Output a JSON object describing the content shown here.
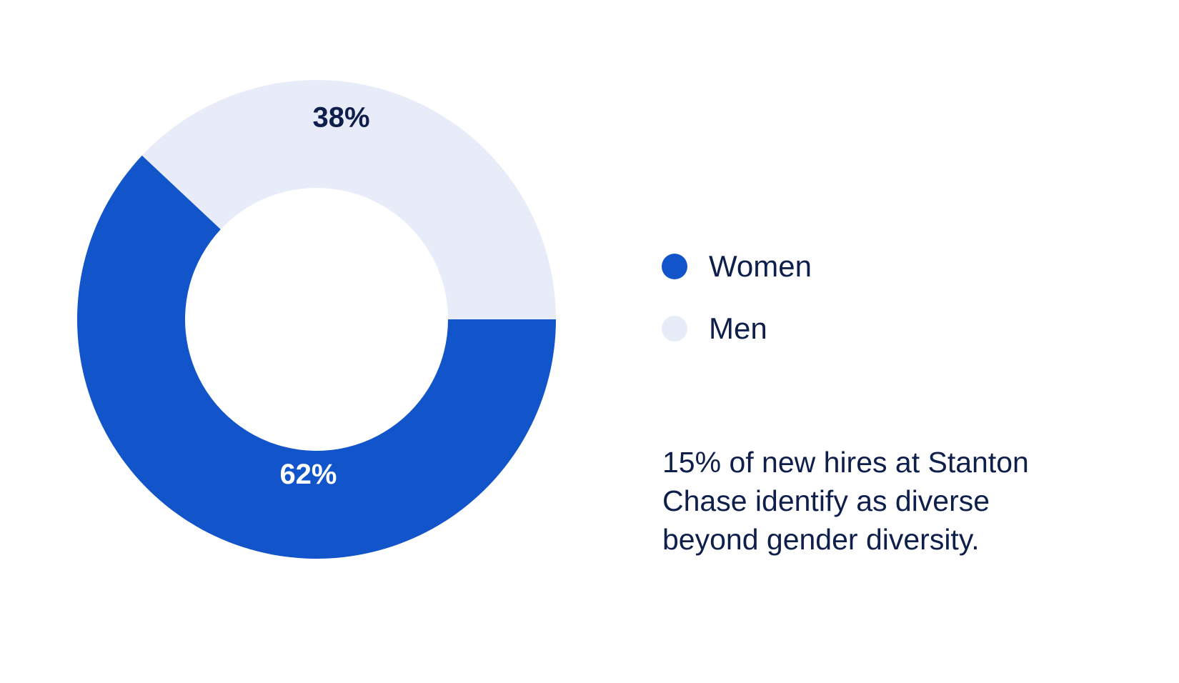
{
  "chart_data": {
    "type": "pie",
    "variant": "donut",
    "categories": [
      "Women",
      "Men"
    ],
    "values": [
      62,
      38
    ],
    "data_labels": [
      "62%",
      "38%"
    ],
    "colors": [
      "#1254CA",
      "#E7ECF8"
    ],
    "label_colors": [
      "#FFFFFF",
      "#0F1F4B"
    ],
    "legend": {
      "position": "right",
      "entries": [
        "Women",
        "Men"
      ]
    }
  },
  "note": "15% of new hires at Stanton Chase identify as diverse beyond gender diversity."
}
